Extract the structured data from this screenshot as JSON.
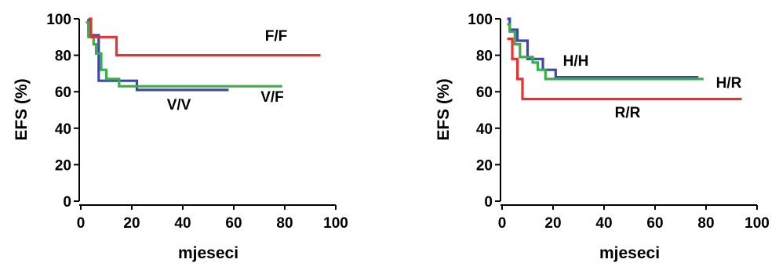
{
  "chart_data": [
    {
      "type": "line",
      "step": true,
      "title": "",
      "xlabel": "mjeseci",
      "ylabel": "EFS (%)",
      "xlim": [
        0,
        100
      ],
      "ylim": [
        0,
        100
      ],
      "xticks": [
        "0",
        "20",
        "40",
        "60",
        "80",
        "100"
      ],
      "yticks": [
        "0",
        "20",
        "40",
        "60",
        "80",
        "100"
      ],
      "grid": false,
      "legend": "none",
      "series": [
        {
          "name": "V/V",
          "color": "#3c4aa3",
          "points": [
            [
              3,
              100
            ],
            [
              3,
              91
            ],
            [
              7,
              91
            ],
            [
              7,
              66
            ],
            [
              22,
              66
            ],
            [
              22,
              61
            ],
            [
              58,
              61
            ]
          ]
        },
        {
          "name": "V/F",
          "color": "#3aae4a",
          "points": [
            [
              2,
              98
            ],
            [
              3,
              98
            ],
            [
              3,
              90
            ],
            [
              5,
              90
            ],
            [
              5,
              86
            ],
            [
              6,
              86
            ],
            [
              6,
              81
            ],
            [
              8,
              81
            ],
            [
              8,
              72
            ],
            [
              10,
              72
            ],
            [
              10,
              67
            ],
            [
              15,
              67
            ],
            [
              15,
              63
            ],
            [
              79,
              63
            ]
          ]
        },
        {
          "name": "F/F",
          "color": "#e63232",
          "points": [
            [
              3,
              100
            ],
            [
              4,
              100
            ],
            [
              4,
              90
            ],
            [
              14,
              90
            ],
            [
              14,
              80
            ],
            [
              94,
              80
            ]
          ]
        }
      ]
    },
    {
      "type": "line",
      "step": true,
      "title": "",
      "xlabel": "mjeseci",
      "ylabel": "EFS (%)",
      "xlim": [
        0,
        100
      ],
      "ylim": [
        0,
        100
      ],
      "xticks": [
        "0",
        "20",
        "40",
        "60",
        "80",
        "100"
      ],
      "yticks": [
        "0",
        "20",
        "40",
        "60",
        "80",
        "100"
      ],
      "grid": false,
      "legend": "none",
      "series": [
        {
          "name": "H/H",
          "color": "#3c4aa3",
          "points": [
            [
              2,
              100
            ],
            [
              3,
              100
            ],
            [
              3,
              94
            ],
            [
              6,
              94
            ],
            [
              6,
              88
            ],
            [
              10,
              88
            ],
            [
              10,
              78
            ],
            [
              16,
              78
            ],
            [
              16,
              72
            ],
            [
              21,
              72
            ],
            [
              21,
              68
            ],
            [
              77,
              68
            ]
          ]
        },
        {
          "name": "H/R",
          "color": "#3aae4a",
          "points": [
            [
              2,
              97
            ],
            [
              3,
              97
            ],
            [
              3,
              93
            ],
            [
              5,
              93
            ],
            [
              5,
              86
            ],
            [
              7,
              86
            ],
            [
              7,
              79
            ],
            [
              12,
              79
            ],
            [
              12,
              76
            ],
            [
              14,
              76
            ],
            [
              14,
              72
            ],
            [
              17,
              72
            ],
            [
              17,
              67
            ],
            [
              79,
              67
            ]
          ]
        },
        {
          "name": "R/R",
          "color": "#e63232",
          "points": [
            [
              2,
              89
            ],
            [
              4,
              89
            ],
            [
              4,
              78
            ],
            [
              6,
              78
            ],
            [
              6,
              67
            ],
            [
              8,
              67
            ],
            [
              8,
              56
            ],
            [
              94,
              56
            ]
          ]
        }
      ]
    }
  ]
}
